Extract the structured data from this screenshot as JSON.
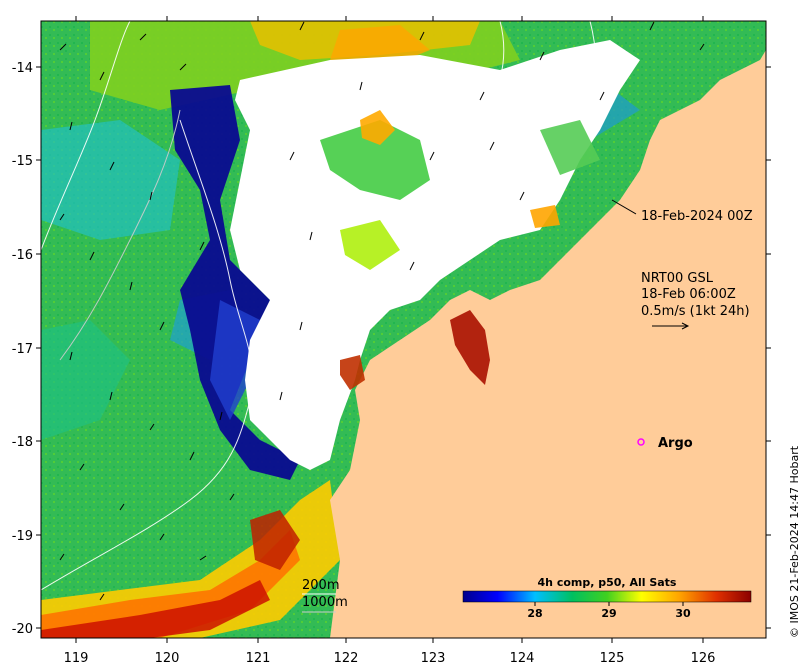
{
  "map": {
    "x_ticks": [
      "119",
      "120",
      "121",
      "122",
      "123",
      "124",
      "125",
      "126"
    ],
    "y_ticks": [
      "-14",
      "-15",
      "-16",
      "-17",
      "-18",
      "-19",
      "-20"
    ],
    "colors": {
      "land": "#ffcc99",
      "cloud": "#ffffff",
      "argo": "#ff00ff",
      "colorbar": [
        "#00008b",
        "#0000ff",
        "#00bfff",
        "#00ff7f",
        "#7fff00",
        "#ffff00",
        "#ff8c00",
        "#ff0000",
        "#8b0000"
      ]
    }
  },
  "annotations": {
    "date_line": "18-Feb-2024 00Z",
    "current_title": "NRT00 GSL",
    "current_time": "18-Feb 06:00Z",
    "current_scale": "0.5m/s (1kt 24h)",
    "argo": "Argo",
    "contour_200": "200m",
    "contour_1000": "1000m"
  },
  "colorbar": {
    "title": "4h comp, p50, All Sats",
    "ticks": [
      "28",
      "29",
      "30"
    ]
  },
  "credit": "© IMOS 21-Feb-2024 14:47 Hobart"
}
